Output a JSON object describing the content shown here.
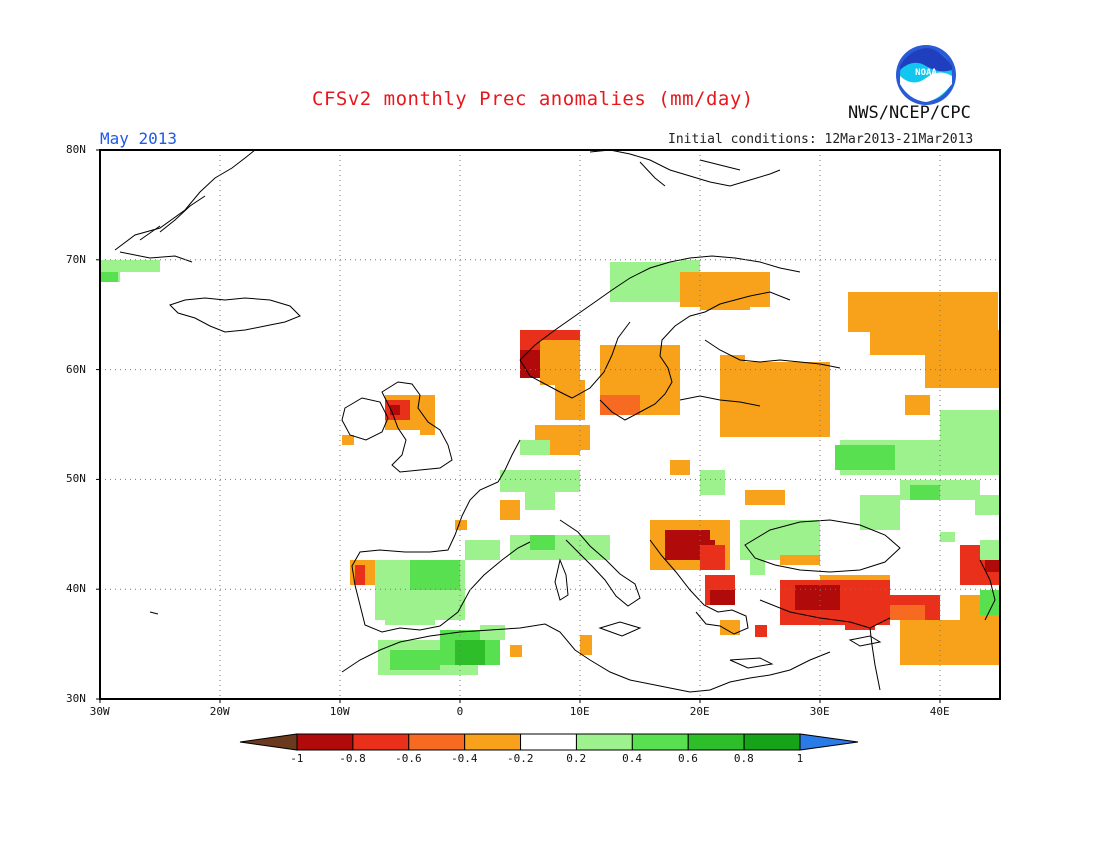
{
  "header": {
    "title": "CFSv2 monthly Prec anomalies (mm/day)",
    "month": "May 2013",
    "initial_conditions": "Initial conditions: 12Mar2013-21Mar2013",
    "agency": "NWS/NCEP/CPC",
    "logo_text": "NOAA"
  },
  "map": {
    "lon_range": [
      -30,
      45
    ],
    "lat_range": [
      30,
      80
    ],
    "lon_ticks": [
      "30W",
      "20W",
      "10W",
      "0",
      "10E",
      "20E",
      "30E",
      "40E"
    ],
    "lat_ticks": [
      "30N",
      "40N",
      "50N",
      "60N",
      "70N",
      "80N"
    ],
    "grid": "dotted"
  },
  "colorbar": {
    "labels": [
      "-1",
      "-0.8",
      "-0.6",
      "-0.4",
      "-0.2",
      "0.2",
      "0.4",
      "0.6",
      "0.8",
      "1"
    ],
    "colors": {
      "below_min": "#6b3a1e",
      "c1": "#b00a0a",
      "c2": "#e8301a",
      "c3": "#f66a22",
      "c4": "#f7a21a",
      "c5": "#ffffff",
      "c6": "#9df28e",
      "c7": "#58e050",
      "c8": "#2dbe2a",
      "c9": "#16a31a",
      "above_max": "#2a7be8"
    }
  }
}
